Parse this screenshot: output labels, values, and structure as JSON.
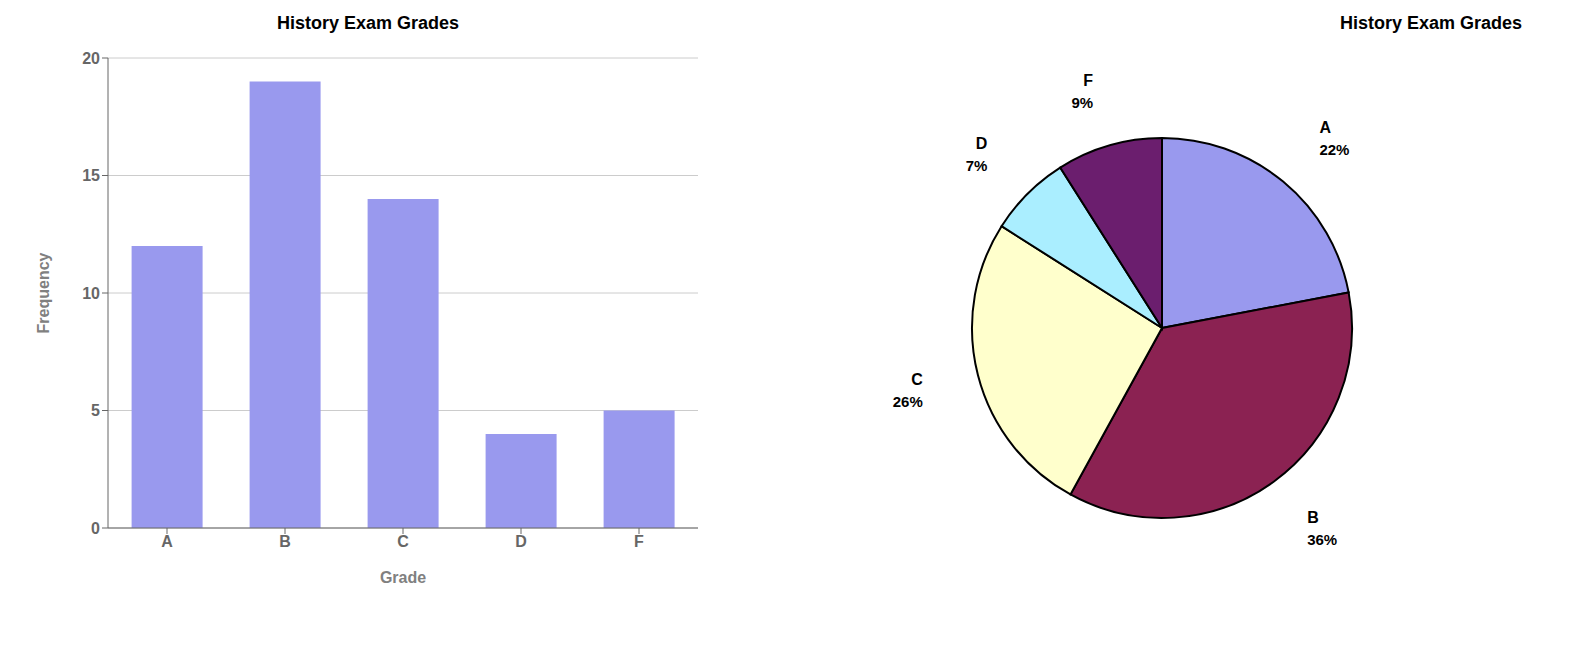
{
  "chart_data": [
    {
      "type": "bar",
      "title": "History Exam Grades",
      "x_label": "Grade",
      "y_label": "Frequency",
      "categories": [
        "A",
        "B",
        "C",
        "D",
        "F"
      ],
      "values": [
        12,
        19,
        14,
        4,
        5
      ],
      "color": "#9999ee",
      "ylim": [
        0,
        20
      ],
      "yticks": [
        0,
        5,
        10,
        15,
        20
      ],
      "grid": true
    },
    {
      "type": "pie",
      "title": "History Exam Grades",
      "categories": [
        "A",
        "B",
        "C",
        "D",
        "F"
      ],
      "values": [
        22,
        36,
        26,
        7,
        9
      ],
      "value_labels": [
        "22%",
        "36%",
        "26%",
        "7%",
        "9%"
      ],
      "colors": [
        "#9999ee",
        "#8B2252",
        "#ffffcc",
        "#aaeeff",
        "#6B1E6E"
      ],
      "data_labels": true
    }
  ]
}
